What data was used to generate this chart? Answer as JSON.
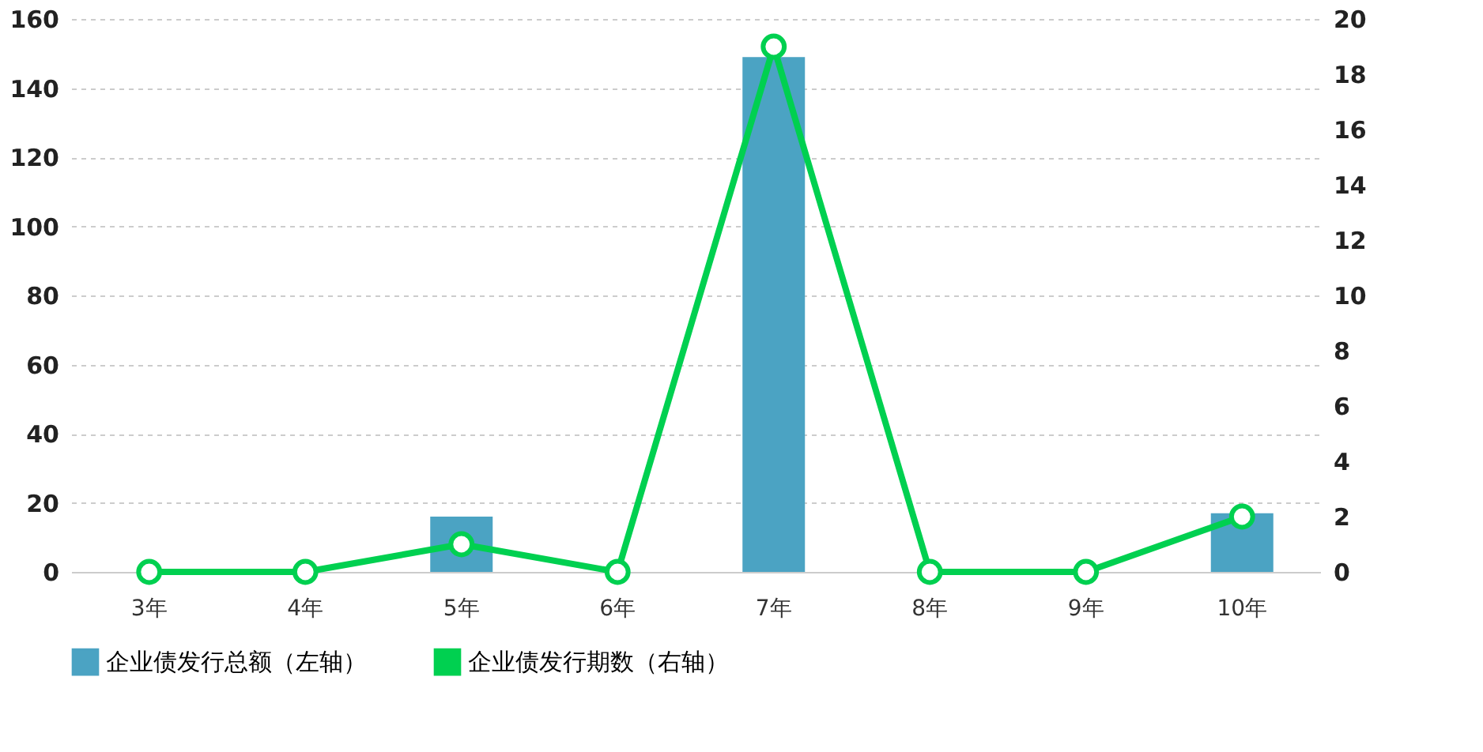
{
  "chart_data": {
    "type": "bar",
    "categories": [
      "3年",
      "4年",
      "5年",
      "6年",
      "7年",
      "8年",
      "9年",
      "10年"
    ],
    "series": [
      {
        "name": "企业债发行总额（左轴）",
        "color": "#4ba3c3",
        "values": [
          0,
          0,
          16,
          0,
          149,
          0,
          0,
          17
        ]
      },
      {
        "name": "企业债发行期数（右轴）",
        "type": "line",
        "axis": "y2",
        "color": "#00d050",
        "values": [
          0,
          0,
          1,
          0,
          19,
          0,
          0,
          2
        ]
      }
    ],
    "ylim": [
      0,
      160
    ],
    "yticks": [
      0,
      20,
      40,
      60,
      80,
      100,
      120,
      140,
      160
    ],
    "y2lim": [
      0,
      20
    ],
    "y2ticks": [
      0,
      2,
      4,
      6,
      8,
      10,
      12,
      14,
      16,
      18,
      20
    ],
    "grid": "y",
    "legend": "bottom",
    "marker": "circle",
    "line_style": "solid"
  }
}
